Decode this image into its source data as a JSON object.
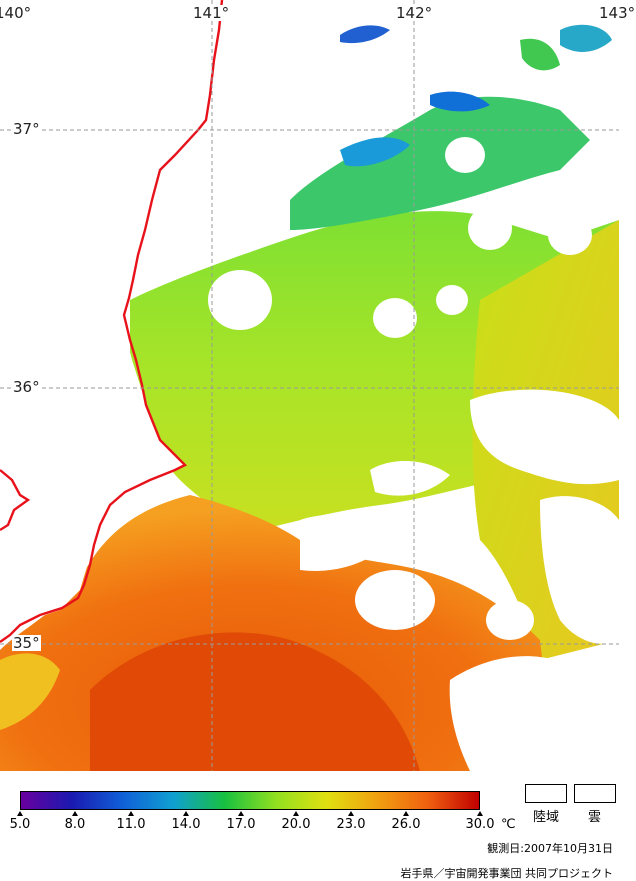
{
  "map": {
    "lon_labels": [
      "140°",
      "141°",
      "142°",
      "143°"
    ],
    "lat_labels": [
      "37°",
      "36°",
      "35°"
    ],
    "coast_color": "#e8121b",
    "grid_color": "#9a9a9a",
    "land_color": "#ffffff",
    "cloud_color": "#ffffff"
  },
  "legend": {
    "tick_labels": [
      "5.0",
      "8.0",
      "11.0",
      "14.0",
      "17.0",
      "20.0",
      "23.0",
      "26.0",
      "30.0"
    ],
    "unit": "℃",
    "land_label": "陸域",
    "cloud_label": "雲",
    "gradient_stops": [
      "#6a00a0",
      "#1a1ab0",
      "#1060d8",
      "#10a0d0",
      "#18c040",
      "#90e020",
      "#e0e010",
      "#f0a010",
      "#f06010",
      "#c00000"
    ]
  },
  "observation_date": "観測日:2007年10月31日",
  "credit": "岩手県／宇宙開発事業団  共同プロジェクト"
}
